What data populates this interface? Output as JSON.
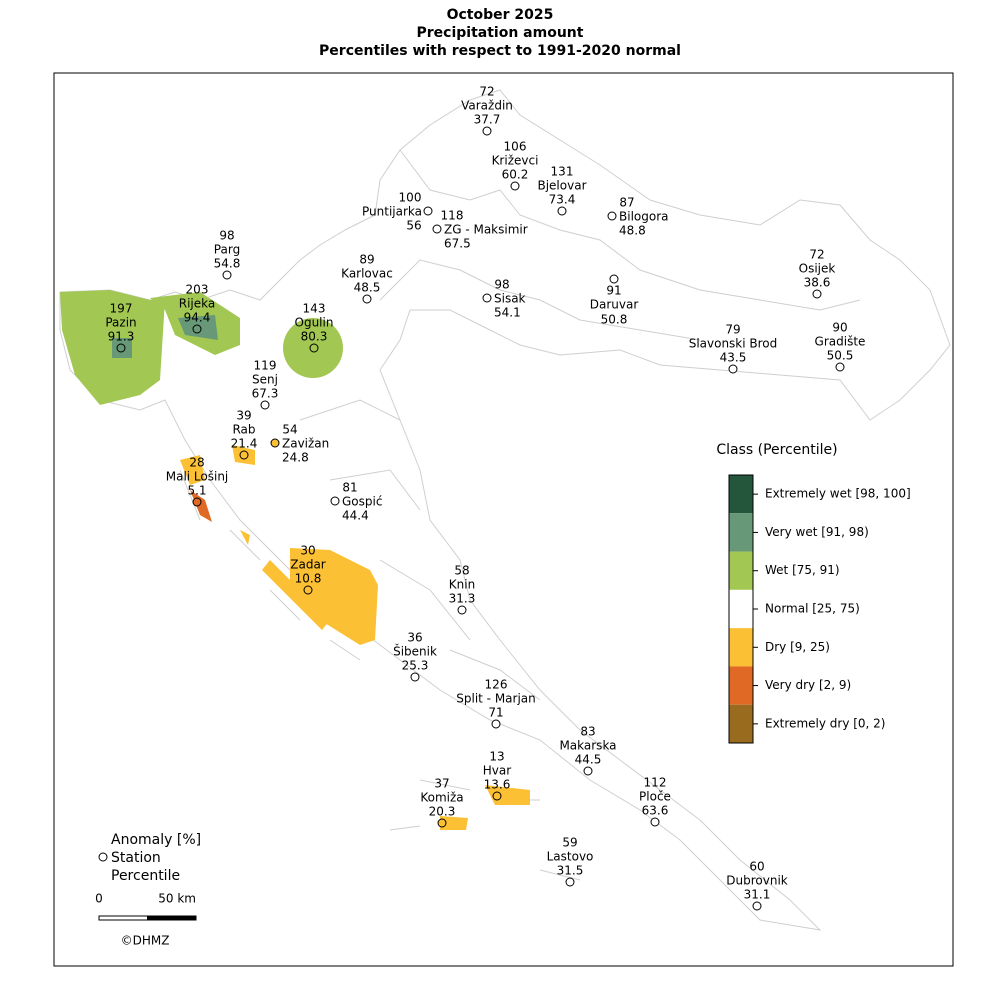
{
  "header": {
    "title": [
      "October 2025",
      "Precipitation amount",
      "Percentiles with respect to 1991-2020 normal"
    ]
  },
  "stations": [
    {
      "name": "Varaždin",
      "anomaly": 72,
      "percentile": 37.7,
      "color": "#ffffff"
    },
    {
      "name": "Križevci",
      "anomaly": 106,
      "percentile": 60.2,
      "color": "#ffffff"
    },
    {
      "name": "Bjelovar",
      "anomaly": 131,
      "percentile": 73.4,
      "color": "#ffffff"
    },
    {
      "name": "Bilogora",
      "anomaly": 87,
      "percentile": 48.8,
      "color": "#ffffff"
    },
    {
      "name": "Puntijarka",
      "anomaly": 100,
      "percentile": 56,
      "color": "#ffffff"
    },
    {
      "name": "ZG - Maksimir",
      "anomaly": 118,
      "percentile": 67.5,
      "color": "#ffffff"
    },
    {
      "name": "Parg",
      "anomaly": 98,
      "percentile": 54.8,
      "color": "#ffffff"
    },
    {
      "name": "Karlovac",
      "anomaly": 89,
      "percentile": 48.5,
      "color": "#ffffff"
    },
    {
      "name": "Sisak",
      "anomaly": 98,
      "percentile": 54.1,
      "color": "#ffffff"
    },
    {
      "name": "Daruvar",
      "anomaly": 91,
      "percentile": 50.8,
      "color": "#ffffff"
    },
    {
      "name": "Osijek",
      "anomaly": 72,
      "percentile": 38.6,
      "color": "#ffffff"
    },
    {
      "name": "Gradište",
      "anomaly": 90,
      "percentile": 50.5,
      "color": "#ffffff"
    },
    {
      "name": "Slavonski Brod",
      "anomaly": 79,
      "percentile": 43.5,
      "color": "#ffffff"
    },
    {
      "name": "Pazin",
      "anomaly": 197,
      "percentile": 91.3,
      "color": "#679877"
    },
    {
      "name": "Rijeka",
      "anomaly": 203,
      "percentile": 94.4,
      "color": "#679877"
    },
    {
      "name": "Ogulin",
      "anomaly": 143,
      "percentile": 80.3,
      "color": "#a2c752"
    },
    {
      "name": "Senj",
      "anomaly": 119,
      "percentile": 67.3,
      "color": "#ffffff"
    },
    {
      "name": "Rab",
      "anomaly": 39,
      "percentile": 21.4,
      "color": "#fbc034"
    },
    {
      "name": "Zavižan",
      "anomaly": 54,
      "percentile": 24.8,
      "color": "#fbc034"
    },
    {
      "name": "Mali Lošinj",
      "anomaly": 28,
      "percentile": 5.1,
      "color": "#e06a25"
    },
    {
      "name": "Gospić",
      "anomaly": 81,
      "percentile": 44.4,
      "color": "#ffffff"
    },
    {
      "name": "Zadar",
      "anomaly": 30,
      "percentile": 10.8,
      "color": "#fbc034"
    },
    {
      "name": "Knin",
      "anomaly": 58,
      "percentile": 31.3,
      "color": "#ffffff"
    },
    {
      "name": "Šibenik",
      "anomaly": 36,
      "percentile": 25.3,
      "color": "#ffffff"
    },
    {
      "name": "Split - Marjan",
      "anomaly": 126,
      "percentile": 71,
      "color": "#ffffff"
    },
    {
      "name": "Makarska",
      "anomaly": 83,
      "percentile": 44.5,
      "color": "#ffffff"
    },
    {
      "name": "Hvar",
      "anomaly": 13,
      "percentile": 13.6,
      "color": "#fbc034"
    },
    {
      "name": "Komiža",
      "anomaly": 37,
      "percentile": 20.3,
      "color": "#fbc034"
    },
    {
      "name": "Ploče",
      "anomaly": 112,
      "percentile": 63.6,
      "color": "#ffffff"
    },
    {
      "name": "Lastovo",
      "anomaly": 59,
      "percentile": 31.5,
      "color": "#ffffff"
    },
    {
      "name": "Dubrovnik",
      "anomaly": 60,
      "percentile": 31.1,
      "color": "#ffffff"
    }
  ],
  "legend": {
    "title": "Class (Percentile)",
    "classes": [
      {
        "label": "Extremely wet [98, 100]",
        "color": "#23563a"
      },
      {
        "label": "Very wet [91, 98)",
        "color": "#679877"
      },
      {
        "label": "Wet [75, 91)",
        "color": "#a2c752"
      },
      {
        "label": "Normal [25, 75)",
        "color": "#ffffff"
      },
      {
        "label": "Dry [9, 25)",
        "color": "#fbc034"
      },
      {
        "label": "Very dry [2, 9)",
        "color": "#e06a25"
      },
      {
        "label": "Extremely dry [0, 2)",
        "color": "#986b1f"
      }
    ]
  },
  "key": {
    "anomaly": "Anomaly [%]",
    "station": "Station",
    "percentile": "Percentile"
  },
  "scale": {
    "ticks": [
      0,
      {
        "value": 50,
        "label": "50 km"
      }
    ]
  },
  "copyright": "©DHMZ"
}
